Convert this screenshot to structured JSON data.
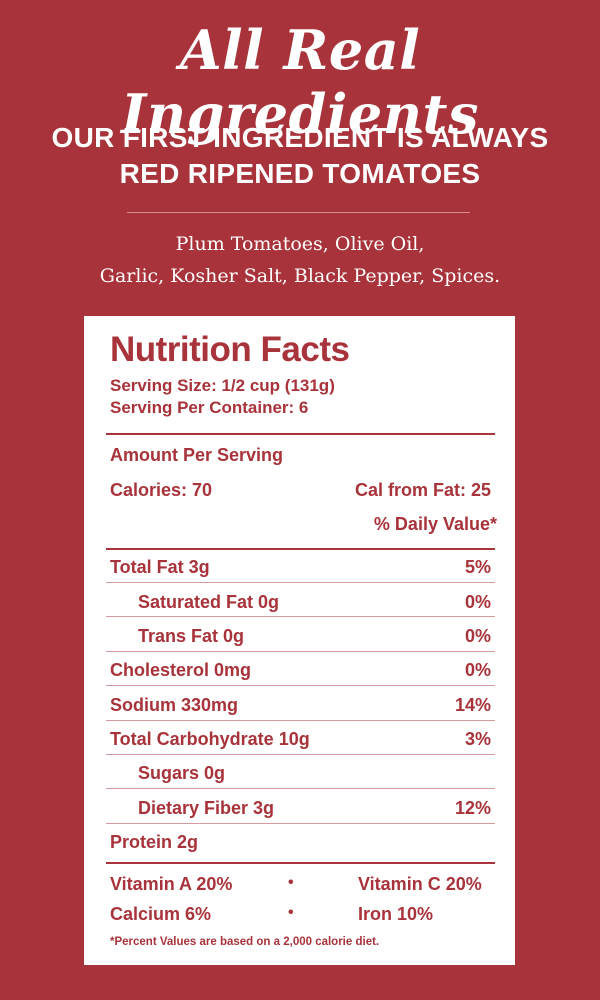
{
  "header": {
    "headline": "All Real Ingredients",
    "subhead_line1": "OUR FIRST INGREDIENT IS ALWAYS",
    "subhead_line2": "RED RIPENED TOMATOES",
    "ingredients_line1": "Plum Tomatoes, Olive Oil,",
    "ingredients_line2": "Garlic, Kosher Salt, Black Pepper, Spices."
  },
  "nutrition": {
    "title": "Nutrition Facts",
    "serving_size": "Serving Size: 1/2 cup (131g)",
    "servings_per_container": "Serving Per Container: 6",
    "amount_per_serving": "Amount Per Serving",
    "calories": "Calories: 70",
    "cal_from_fat": "Cal from Fat: 25",
    "daily_value_header": "% Daily Value*",
    "rows": [
      {
        "label": "Total Fat 3g",
        "value": "5%"
      },
      {
        "label": "Saturated Fat 0g",
        "value": "0%"
      },
      {
        "label": "Trans Fat 0g",
        "value": "0%"
      },
      {
        "label": "Cholesterol 0mg",
        "value": "0%"
      },
      {
        "label": "Sodium 330mg",
        "value": "14%"
      },
      {
        "label": "Total Carbohydrate 10g",
        "value": "3%"
      },
      {
        "label": "Sugars 0g",
        "value": ""
      },
      {
        "label": "Dietary Fiber 3g",
        "value": "12%"
      },
      {
        "label": "Protein 2g",
        "value": ""
      }
    ],
    "vitamins": {
      "vitamin_a": "Vitamin A 20%",
      "vitamin_c": "Vitamin C 20%",
      "calcium": "Calcium 6%",
      "iron": "Iron 10%",
      "bullet": "•"
    },
    "footnote": "*Percent Values are based on a 2,000 calorie diet."
  },
  "colors": {
    "background": "#a8333a",
    "panel": "#ffffff",
    "text_on_panel": "#a8333a"
  }
}
